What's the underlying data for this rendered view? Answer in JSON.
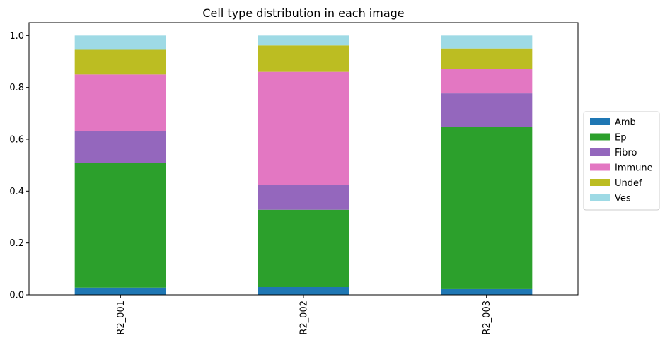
{
  "chart_data": {
    "type": "bar",
    "stacked": true,
    "title": "Cell type distribution in each image",
    "xlabel": "",
    "ylabel": "",
    "categories": [
      "R2_001",
      "R2_002",
      "R2_003"
    ],
    "ylim": [
      0,
      1.05
    ],
    "yticks": [
      "0.0",
      "0.2",
      "0.4",
      "0.6",
      "0.8",
      "1.0"
    ],
    "grid": false,
    "legend_position": "right, outside plot",
    "series": [
      {
        "name": "Amb",
        "color": "#1f77b4",
        "values": [
          0.028,
          0.03,
          0.022
        ]
      },
      {
        "name": "Ep",
        "color": "#2ca02c",
        "values": [
          0.482,
          0.298,
          0.625
        ]
      },
      {
        "name": "Fibro",
        "color": "#9467bd",
        "values": [
          0.12,
          0.097,
          0.13
        ]
      },
      {
        "name": "Immune",
        "color": "#e377c2",
        "values": [
          0.22,
          0.435,
          0.093
        ]
      },
      {
        "name": "Undef",
        "color": "#bcbd22",
        "values": [
          0.095,
          0.102,
          0.08
        ]
      },
      {
        "name": "Ves",
        "color": "#9edae5",
        "values": [
          0.055,
          0.038,
          0.05
        ]
      }
    ]
  }
}
